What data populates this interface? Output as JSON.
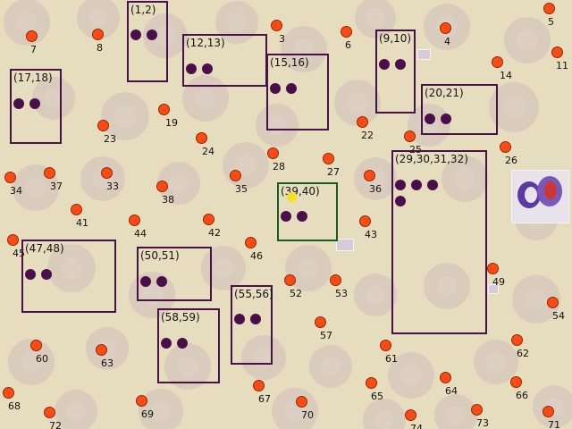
{
  "image": {
    "description_hidden": "",
    "colors": {
      "point": "#ff4a14",
      "group_border": "#4a1048",
      "selected_border": "#1a5a1a",
      "group_dot": "#4a0f4a",
      "cursor": "#f4e21a"
    }
  },
  "points": [
    {
      "id": "3",
      "label": "3"
    },
    {
      "id": "4",
      "label": "4"
    },
    {
      "id": "5",
      "label": "5"
    },
    {
      "id": "6",
      "label": "6"
    },
    {
      "id": "7",
      "label": "7"
    },
    {
      "id": "8",
      "label": "8"
    },
    {
      "id": "11",
      "label": "11"
    },
    {
      "id": "14",
      "label": "14"
    },
    {
      "id": "19",
      "label": "19"
    },
    {
      "id": "22",
      "label": "22"
    },
    {
      "id": "23",
      "label": "23"
    },
    {
      "id": "24",
      "label": "24"
    },
    {
      "id": "25",
      "label": "25"
    },
    {
      "id": "26",
      "label": "26"
    },
    {
      "id": "27",
      "label": "27"
    },
    {
      "id": "28",
      "label": "28"
    },
    {
      "id": "33",
      "label": "33"
    },
    {
      "id": "34",
      "label": "34"
    },
    {
      "id": "35",
      "label": "35"
    },
    {
      "id": "36",
      "label": "36"
    },
    {
      "id": "37",
      "label": "37"
    },
    {
      "id": "38",
      "label": "38"
    },
    {
      "id": "41",
      "label": "41"
    },
    {
      "id": "42",
      "label": "42"
    },
    {
      "id": "43",
      "label": "43"
    },
    {
      "id": "44",
      "label": "44"
    },
    {
      "id": "45",
      "label": "45"
    },
    {
      "id": "46",
      "label": "46"
    },
    {
      "id": "49",
      "label": "49"
    },
    {
      "id": "52",
      "label": "52"
    },
    {
      "id": "53",
      "label": "53"
    },
    {
      "id": "54",
      "label": "54"
    },
    {
      "id": "57",
      "label": "57"
    },
    {
      "id": "60",
      "label": "60"
    },
    {
      "id": "61",
      "label": "61"
    },
    {
      "id": "62",
      "label": "62"
    },
    {
      "id": "63",
      "label": "63"
    },
    {
      "id": "64",
      "label": "64"
    },
    {
      "id": "65",
      "label": "65"
    },
    {
      "id": "66",
      "label": "66"
    },
    {
      "id": "67",
      "label": "67"
    },
    {
      "id": "68",
      "label": "68"
    },
    {
      "id": "69",
      "label": "69"
    },
    {
      "id": "70",
      "label": "70"
    },
    {
      "id": "71",
      "label": "71"
    },
    {
      "id": "72",
      "label": "72"
    },
    {
      "id": "73",
      "label": "73"
    },
    {
      "id": "74",
      "label": "74"
    }
  ],
  "groups": [
    {
      "id": "1-2",
      "label": "(1,2)",
      "dots": 2,
      "selected": false
    },
    {
      "id": "12-13",
      "label": "(12,13)",
      "dots": 2,
      "selected": false
    },
    {
      "id": "15-16",
      "label": "(15,16)",
      "dots": 2,
      "selected": false
    },
    {
      "id": "9-10",
      "label": "(9,10)",
      "dots": 2,
      "selected": false
    },
    {
      "id": "17-18",
      "label": "(17,18)",
      "dots": 2,
      "selected": false
    },
    {
      "id": "20-21",
      "label": "(20,21)",
      "dots": 2,
      "selected": false
    },
    {
      "id": "39-40",
      "label": "(39,40)",
      "dots": 2,
      "selected": true
    },
    {
      "id": "29-32",
      "label": "(29,30,31,32)",
      "dots": 4,
      "selected": false
    },
    {
      "id": "47-48",
      "label": "(47,48)",
      "dots": 2,
      "selected": false
    },
    {
      "id": "50-51",
      "label": "(50,51)",
      "dots": 2,
      "selected": false
    },
    {
      "id": "55-56",
      "label": "(55,56)",
      "dots": 2,
      "selected": false
    },
    {
      "id": "58-59",
      "label": "(58,59)",
      "dots": 2,
      "selected": false
    }
  ]
}
